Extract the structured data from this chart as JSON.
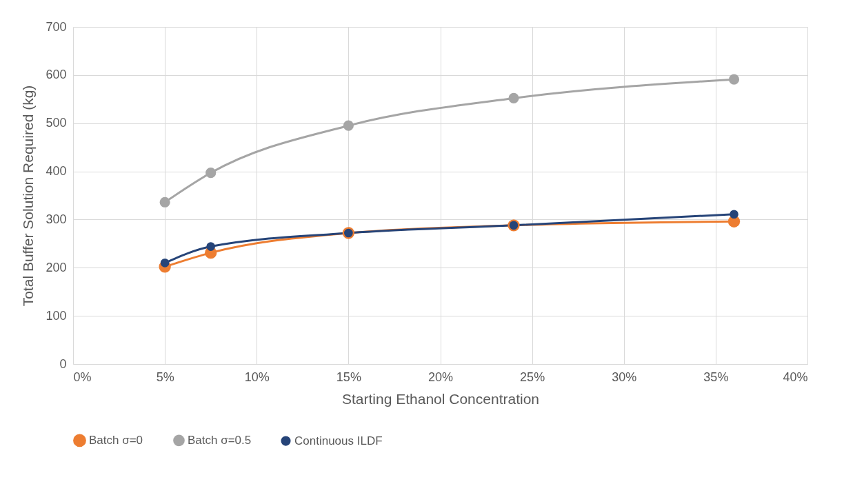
{
  "chart_data": {
    "type": "line",
    "xlabel": "Starting Ethanol Concentration",
    "ylabel": "Total Buffer Solution Required (kg)",
    "x": [
      5,
      7.5,
      15,
      24,
      36
    ],
    "series": [
      {
        "name": "Batch σ=0",
        "color": "#ed7d31",
        "values": [
          202,
          231,
          272,
          288,
          296
        ]
      },
      {
        "name": "Batch σ=0.5",
        "color": "#a5a5a5",
        "values": [
          336,
          397,
          495,
          552,
          591
        ]
      },
      {
        "name": "Continuous ILDF",
        "color": "#264478",
        "values": [
          210,
          244,
          272,
          288,
          311
        ]
      }
    ],
    "xlim": [
      0,
      40
    ],
    "xticks": [
      {
        "value": 0,
        "label": "0%"
      },
      {
        "value": 5,
        "label": "5%"
      },
      {
        "value": 10,
        "label": "10%"
      },
      {
        "value": 15,
        "label": "15%"
      },
      {
        "value": 20,
        "label": "20%"
      },
      {
        "value": 25,
        "label": "25%"
      },
      {
        "value": 30,
        "label": "30%"
      },
      {
        "value": 35,
        "label": "35%"
      },
      {
        "value": 40,
        "label": "40%"
      }
    ],
    "ylim": [
      0,
      700
    ],
    "yticks": [
      0,
      100,
      200,
      300,
      400,
      500,
      600,
      700
    ],
    "grid": true,
    "legend": "bottom",
    "marker": "circle",
    "line_style": "solid"
  }
}
